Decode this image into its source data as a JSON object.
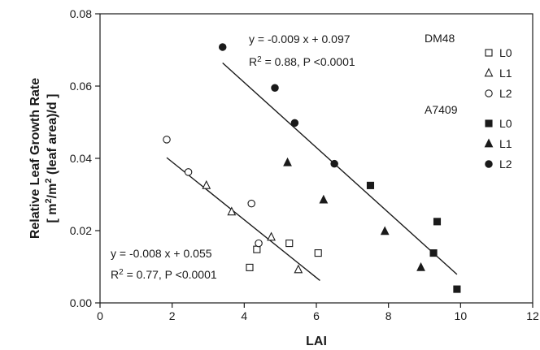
{
  "chart_data": {
    "type": "scatter",
    "xlabel": "LAI",
    "ylabel_line1": "Relative Leaf Growth Rate",
    "ylabel_line2_prefix": "[ m",
    "ylabel_line2_mid": "/m",
    "ylabel_line2_suffix": " (leaf area)/d ]",
    "ylabel_sup": "2",
    "xlim": [
      0,
      12
    ],
    "ylim": [
      0,
      0.08
    ],
    "xticks": [
      "0",
      "2",
      "4",
      "6",
      "8",
      "10",
      "12"
    ],
    "yticks": [
      "0.00",
      "0.02",
      "0.04",
      "0.06",
      "0.08"
    ],
    "grid": false,
    "legend_position": "top-right",
    "legend": {
      "groups": [
        {
          "label": "DM48",
          "entries": [
            {
              "marker": "open-square",
              "label": "L0"
            },
            {
              "marker": "open-triangle",
              "label": "L1"
            },
            {
              "marker": "open-circle",
              "label": "L2"
            }
          ]
        },
        {
          "label": "A7409",
          "entries": [
            {
              "marker": "filled-square",
              "label": "L0"
            },
            {
              "marker": "filled-triangle",
              "label": "L1"
            },
            {
              "marker": "filled-circle",
              "label": "L2"
            }
          ]
        }
      ]
    },
    "series": [
      {
        "group": "DM48",
        "level": "L0",
        "marker": "open-square",
        "x": [
          4.15,
          4.35,
          5.25,
          6.05
        ],
        "y": [
          0.0098,
          0.0148,
          0.0165,
          0.0138
        ]
      },
      {
        "group": "DM48",
        "level": "L1",
        "marker": "open-triangle",
        "x": [
          2.95,
          3.65,
          4.75,
          5.5
        ],
        "y": [
          0.0325,
          0.0252,
          0.0182,
          0.0092
        ]
      },
      {
        "group": "DM48",
        "level": "L2",
        "marker": "open-circle",
        "x": [
          1.85,
          2.45,
          4.2,
          4.4
        ],
        "y": [
          0.0452,
          0.0362,
          0.0275,
          0.0165
        ]
      },
      {
        "group": "A7409",
        "level": "L0",
        "marker": "filled-square",
        "x": [
          7.5,
          9.25,
          9.35,
          9.9
        ],
        "y": [
          0.0325,
          0.0138,
          0.0225,
          0.0038
        ]
      },
      {
        "group": "A7409",
        "level": "L1",
        "marker": "filled-triangle",
        "x": [
          5.2,
          6.2,
          7.9,
          8.9
        ],
        "y": [
          0.0388,
          0.0285,
          0.0198,
          0.0098
        ]
      },
      {
        "group": "A7409",
        "level": "L2",
        "marker": "filled-circle",
        "x": [
          3.4,
          4.85,
          5.4,
          6.5
        ],
        "y": [
          0.0708,
          0.0595,
          0.0498,
          0.0385
        ]
      }
    ],
    "regressions": [
      {
        "group": "A7409",
        "slope": -0.009,
        "intercept": 0.097,
        "x_range": [
          3.4,
          9.9
        ],
        "equation": "y = -0.009 x + 0.097",
        "stats_prefix": "R",
        "stats_sup": "2",
        "stats_rest": " = 0.88, P <0.0001"
      },
      {
        "group": "DM48",
        "slope": -0.008,
        "intercept": 0.055,
        "x_range": [
          1.85,
          6.1
        ],
        "equation": "y = -0.008 x + 0.055",
        "stats_prefix": "R",
        "stats_sup": "2",
        "stats_rest": " = 0.77, P <0.0001"
      }
    ]
  }
}
